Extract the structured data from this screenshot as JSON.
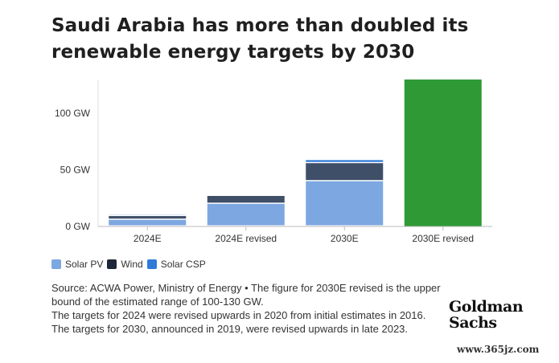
{
  "title_line1": "Saudi Arabia has more than doubled its",
  "title_line2": "renewable energy targets by 2030",
  "chart_data": {
    "type": "bar",
    "stacked": true,
    "categories": [
      "2024E",
      "2024E revised",
      "2030E",
      "2030E revised"
    ],
    "y_ticks": [
      {
        "value": 0,
        "label": "0 GW"
      },
      {
        "value": 50,
        "label": "50 GW"
      },
      {
        "value": 100,
        "label": "100 GW"
      }
    ],
    "ylim": [
      0,
      130
    ],
    "series": [
      {
        "name": "Solar PV",
        "color": "#7da7e0",
        "values": [
          5.9,
          20,
          40,
          null
        ]
      },
      {
        "name": "Wind",
        "color": "#3f4f68",
        "values": [
          3.3,
          7,
          16,
          null
        ]
      },
      {
        "name": "Solar CSP",
        "color": "#2f7bd8",
        "values": [
          1.2,
          0,
          2.7,
          null
        ]
      }
    ],
    "total_bar": {
      "category": "2030E revised",
      "value": 130,
      "color": "#2f9a35"
    },
    "legend_position": "bottom-left",
    "grid": false
  },
  "source_line1": "Source: ACWA Power, Ministry of Energy • The figure for 2030E revised is the upper bound of the estimated range of 100-130 GW.",
  "source_line2": "The targets for 2024 were revised upwards in 2020 from initial estimates in 2016. The targets for 2030, announced in 2019, were revised upwards in late 2023.",
  "logo_line1": "Goldman",
  "logo_line2": "Sachs",
  "watermark": "www.365jz.com"
}
